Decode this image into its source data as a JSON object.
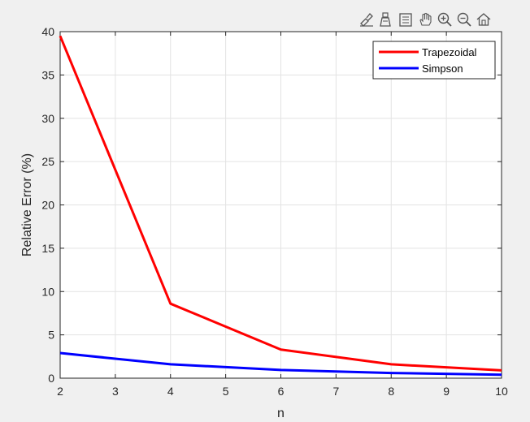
{
  "toolbar": {
    "icons": [
      "brush-icon",
      "data-tips-icon",
      "legend-icon",
      "pan-icon",
      "zoom-in-icon",
      "zoom-out-icon",
      "home-icon"
    ]
  },
  "chart_data": {
    "type": "line",
    "xlabel": "n",
    "ylabel": "Relative Error (%)",
    "xlim": [
      2,
      10
    ],
    "ylim": [
      0,
      40
    ],
    "xticks": [
      2,
      3,
      4,
      5,
      6,
      7,
      8,
      9,
      10
    ],
    "yticks": [
      0,
      5,
      10,
      15,
      20,
      25,
      30,
      35,
      40
    ],
    "grid": true,
    "legend_position": "top-right",
    "series": [
      {
        "name": "Trapezoidal",
        "color": "#ff0000",
        "x": [
          2,
          4,
          6,
          8,
          10
        ],
        "y": [
          39.5,
          8.6,
          3.3,
          1.6,
          0.9
        ]
      },
      {
        "name": "Simpson",
        "color": "#0000ff",
        "x": [
          2,
          4,
          6,
          8,
          10
        ],
        "y": [
          2.9,
          1.6,
          0.95,
          0.6,
          0.4
        ]
      }
    ]
  }
}
